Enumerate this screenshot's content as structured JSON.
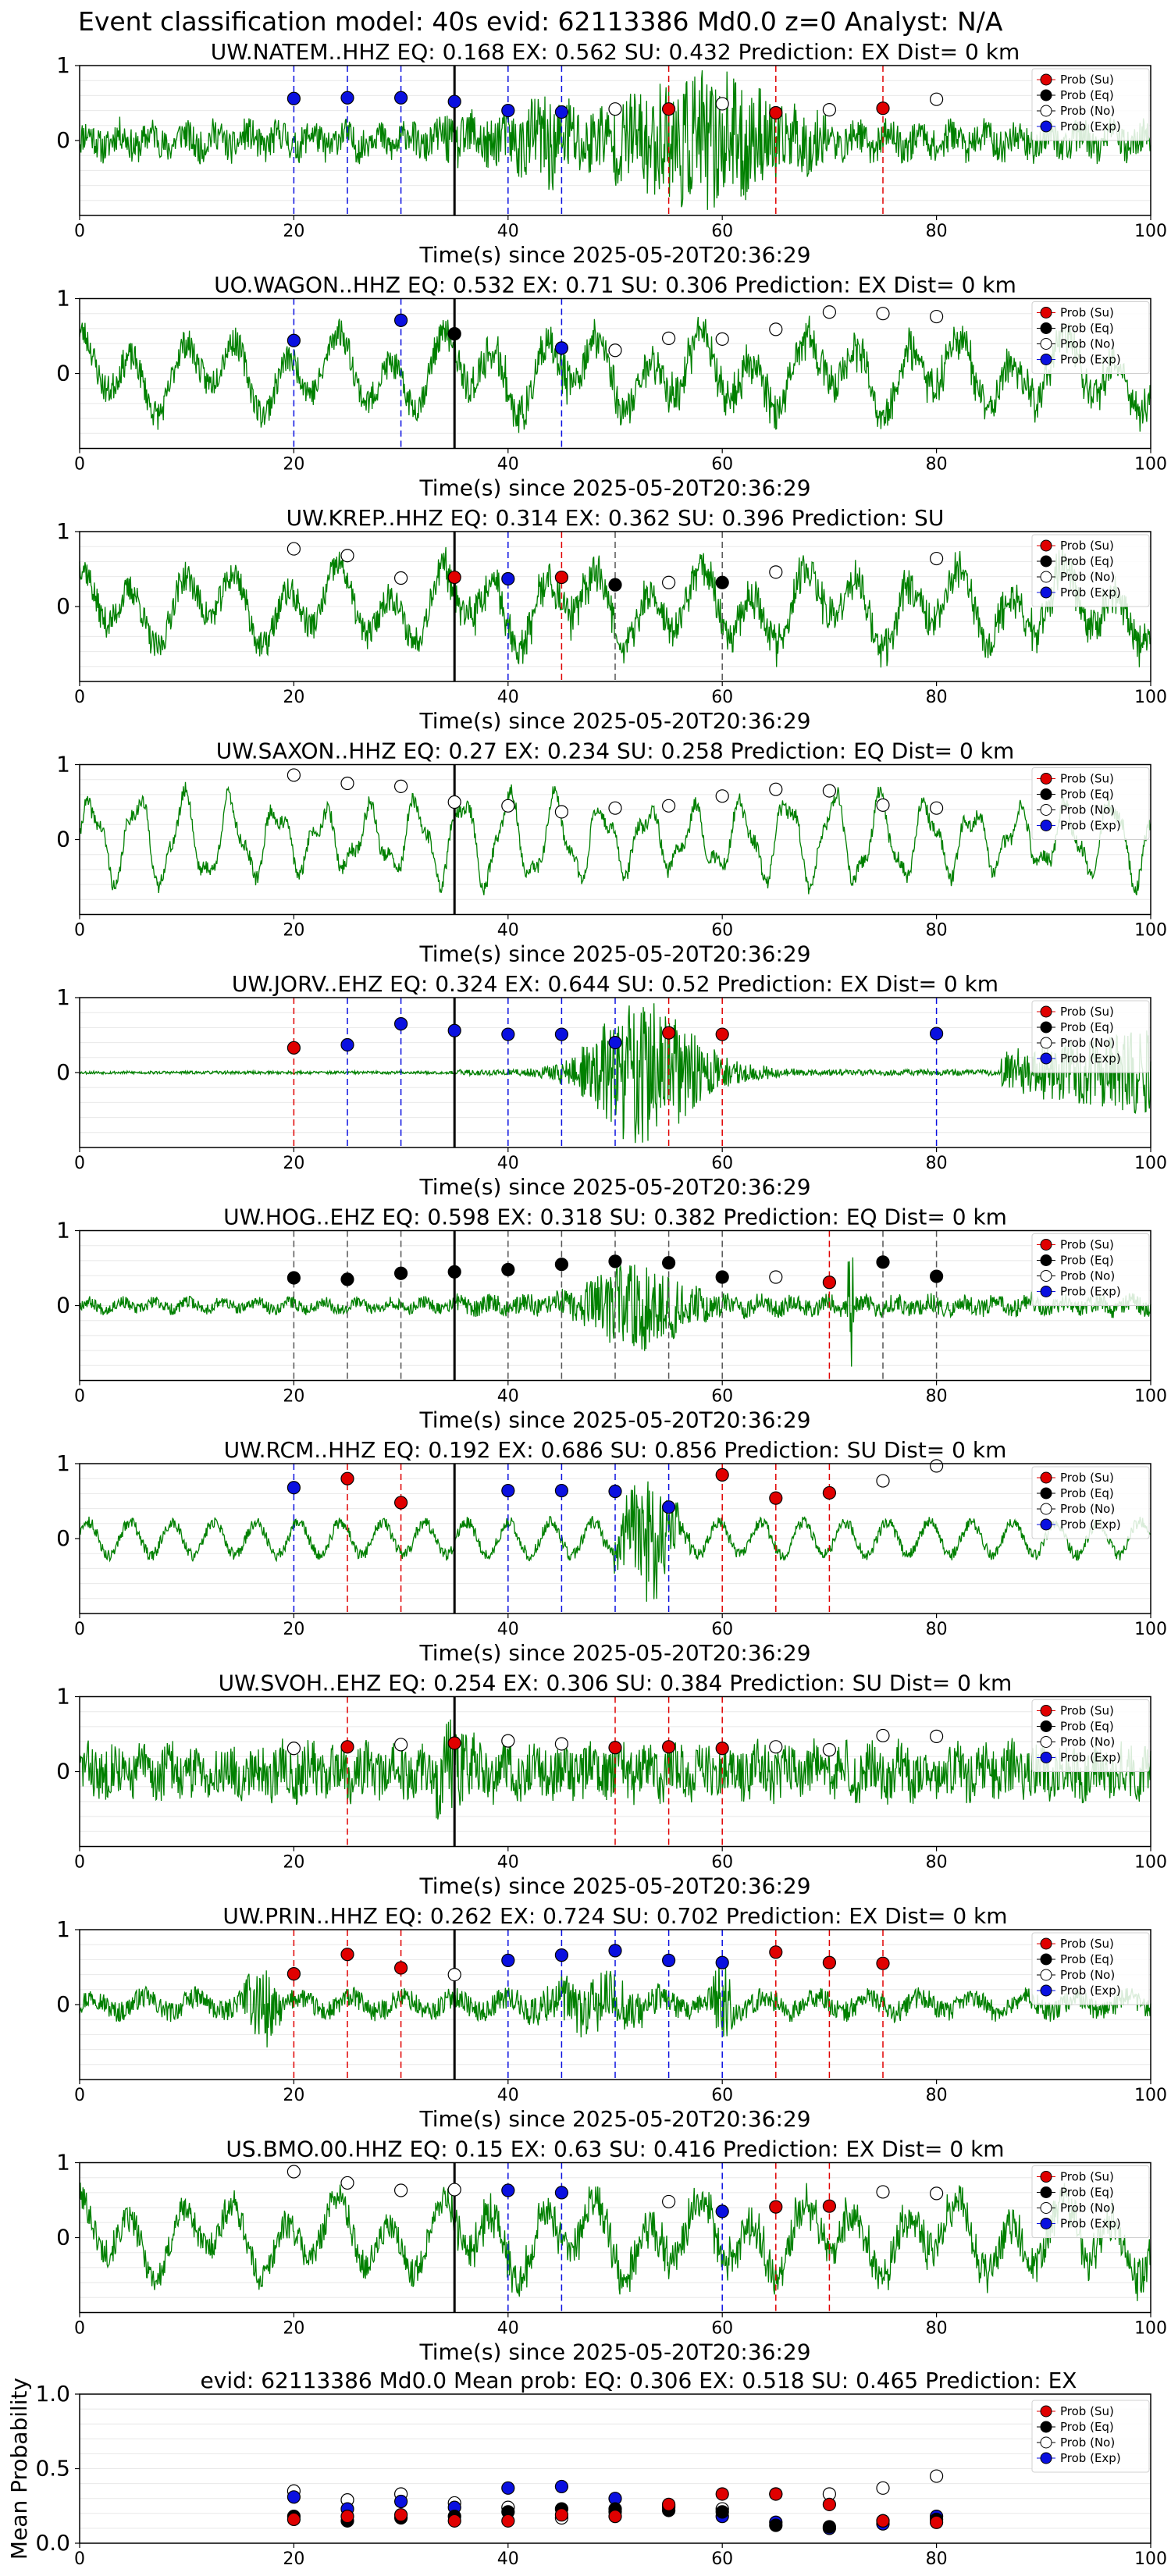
{
  "figure": {
    "suptitle": "Event classification model: 40s evid: 62113386 Md0.0 z=0 Analyst: N/A",
    "legend_labels": [
      "Prob (Su)",
      "Prob (Eq)",
      "Prob (No)",
      "Prob (Exp)"
    ],
    "xlabel": "Time(s) since 2025-05-20T20:36:29",
    "colors": {
      "su": "#e00000",
      "eq": "#000000",
      "no": "#ffffff",
      "exp": "#0a10e0",
      "trace": "#008000",
      "arrival": "#000000"
    }
  },
  "chart_data": [
    {
      "type": "line",
      "title": "UW.NATEM..HHZ   EQ: 0.168  EX: 0.562  SU: 0.432   Prediction: EX    Dist= 0 km",
      "xlim": [
        0,
        100
      ],
      "xticks": [
        0,
        20,
        40,
        60,
        80,
        100
      ],
      "yticks": [
        1,
        0
      ],
      "ylim": [
        -1,
        1
      ],
      "arrival_time": 35,
      "grid": true,
      "legend": "top-right",
      "trace_style": "broadband",
      "trace_seed": 11,
      "windows": [
        {
          "t": 20,
          "class": "exp",
          "p": 0.56
        },
        {
          "t": 25,
          "class": "exp",
          "p": 0.57
        },
        {
          "t": 30,
          "class": "exp",
          "p": 0.57
        },
        {
          "t": 35,
          "class": "exp",
          "p": 0.52
        },
        {
          "t": 40,
          "class": "exp",
          "p": 0.4
        },
        {
          "t": 45,
          "class": "exp",
          "p": 0.38
        },
        {
          "t": 50,
          "class": "no",
          "p": 0.42
        },
        {
          "t": 55,
          "class": "su",
          "p": 0.42
        },
        {
          "t": 60,
          "class": "no",
          "p": 0.49
        },
        {
          "t": 65,
          "class": "su",
          "p": 0.37
        },
        {
          "t": 70,
          "class": "no",
          "p": 0.41
        },
        {
          "t": 75,
          "class": "su",
          "p": 0.43
        },
        {
          "t": 80,
          "class": "no",
          "p": 0.55
        }
      ]
    },
    {
      "type": "line",
      "title": "UO.WAGON..HHZ   EQ: 0.532  EX: 0.71  SU: 0.306   Prediction: EX    Dist= 0 km",
      "xlim": [
        0,
        100
      ],
      "xticks": [
        0,
        20,
        40,
        60,
        80,
        100
      ],
      "yticks": [
        1,
        0
      ],
      "ylim": [
        -1,
        1
      ],
      "arrival_time": 35,
      "grid": true,
      "legend": "top-right",
      "trace_style": "longperiod",
      "trace_seed": 23,
      "windows": [
        {
          "t": 20,
          "class": "exp",
          "p": 0.44
        },
        {
          "t": 30,
          "class": "exp",
          "p": 0.71
        },
        {
          "t": 35,
          "class": "eq",
          "p": 0.53
        },
        {
          "t": 45,
          "class": "exp",
          "p": 0.34
        },
        {
          "t": 50,
          "class": "no",
          "p": 0.31
        },
        {
          "t": 55,
          "class": "no",
          "p": 0.47
        },
        {
          "t": 60,
          "class": "no",
          "p": 0.46
        },
        {
          "t": 65,
          "class": "no",
          "p": 0.59
        },
        {
          "t": 70,
          "class": "no",
          "p": 0.82
        },
        {
          "t": 75,
          "class": "no",
          "p": 0.8
        },
        {
          "t": 80,
          "class": "no",
          "p": 0.76
        }
      ]
    },
    {
      "type": "line",
      "title": "UW.KREP..HHZ   EQ: 0.314  EX: 0.362  SU: 0.396   Prediction: SU",
      "xlim": [
        0,
        100
      ],
      "xticks": [
        0,
        20,
        40,
        60,
        80,
        100
      ],
      "yticks": [
        1,
        0
      ],
      "ylim": [
        -1,
        1
      ],
      "arrival_time": 35,
      "grid": true,
      "legend": "top-right",
      "trace_style": "longperiod",
      "trace_seed": 37,
      "windows": [
        {
          "t": 20,
          "class": "no",
          "p": 0.77
        },
        {
          "t": 25,
          "class": "no",
          "p": 0.68
        },
        {
          "t": 30,
          "class": "no",
          "p": 0.38
        },
        {
          "t": 35,
          "class": "su",
          "p": 0.39
        },
        {
          "t": 40,
          "class": "exp",
          "p": 0.37
        },
        {
          "t": 45,
          "class": "su",
          "p": 0.39
        },
        {
          "t": 50,
          "class": "eq",
          "p": 0.29
        },
        {
          "t": 55,
          "class": "no",
          "p": 0.32
        },
        {
          "t": 60,
          "class": "eq",
          "p": 0.32
        },
        {
          "t": 65,
          "class": "no",
          "p": 0.46
        },
        {
          "t": 80,
          "class": "no",
          "p": 0.64
        }
      ]
    },
    {
      "type": "line",
      "title": "UW.SAXON..HHZ   EQ: 0.27  EX: 0.234  SU: 0.258   Prediction: EQ    Dist= 0 km",
      "xlim": [
        0,
        100
      ],
      "xticks": [
        0,
        20,
        40,
        60,
        80,
        100
      ],
      "yticks": [
        1,
        0
      ],
      "ylim": [
        -1,
        1
      ],
      "arrival_time": 35,
      "grid": true,
      "legend": "top-right",
      "trace_style": "oscillation",
      "trace_seed": 41,
      "windows": [
        {
          "t": 20,
          "class": "no",
          "p": 0.86
        },
        {
          "t": 25,
          "class": "no",
          "p": 0.75
        },
        {
          "t": 30,
          "class": "no",
          "p": 0.71
        },
        {
          "t": 35,
          "class": "no",
          "p": 0.5
        },
        {
          "t": 40,
          "class": "no",
          "p": 0.45
        },
        {
          "t": 45,
          "class": "no",
          "p": 0.37
        },
        {
          "t": 50,
          "class": "no",
          "p": 0.42
        },
        {
          "t": 55,
          "class": "no",
          "p": 0.45
        },
        {
          "t": 60,
          "class": "no",
          "p": 0.58
        },
        {
          "t": 65,
          "class": "no",
          "p": 0.67
        },
        {
          "t": 70,
          "class": "no",
          "p": 0.65
        },
        {
          "t": 75,
          "class": "no",
          "p": 0.46
        },
        {
          "t": 80,
          "class": "no",
          "p": 0.42
        }
      ]
    },
    {
      "type": "line",
      "title": "UW.JORV..EHZ   EQ: 0.324  EX: 0.644  SU: 0.52   Prediction: EX    Dist= 0 km",
      "xlim": [
        0,
        100
      ],
      "xticks": [
        0,
        20,
        40,
        60,
        80,
        100
      ],
      "yticks": [
        1,
        0
      ],
      "ylim": [
        -1,
        1
      ],
      "arrival_time": 35,
      "grid": true,
      "legend": "top-right",
      "trace_style": "quiet_burst",
      "trace_seed": 53,
      "windows": [
        {
          "t": 20,
          "class": "su",
          "p": 0.33
        },
        {
          "t": 25,
          "class": "exp",
          "p": 0.37
        },
        {
          "t": 30,
          "class": "exp",
          "p": 0.65
        },
        {
          "t": 35,
          "class": "exp",
          "p": 0.56
        },
        {
          "t": 40,
          "class": "exp",
          "p": 0.51
        },
        {
          "t": 45,
          "class": "exp",
          "p": 0.51
        },
        {
          "t": 50,
          "class": "exp",
          "p": 0.4
        },
        {
          "t": 55,
          "class": "su",
          "p": 0.53
        },
        {
          "t": 60,
          "class": "su",
          "p": 0.51
        },
        {
          "t": 80,
          "class": "exp",
          "p": 0.52
        }
      ]
    },
    {
      "type": "line",
      "title": "UW.HOG..EHZ   EQ: 0.598  EX: 0.318  SU: 0.382   Prediction: EQ    Dist= 0 km",
      "xlim": [
        0,
        100
      ],
      "xticks": [
        0,
        20,
        40,
        60,
        80,
        100
      ],
      "yticks": [
        1,
        0
      ],
      "ylim": [
        -1,
        1
      ],
      "arrival_time": 35,
      "grid": true,
      "legend": "top-right",
      "trace_style": "small_burst",
      "trace_seed": 67,
      "windows": [
        {
          "t": 20,
          "class": "eq",
          "p": 0.37
        },
        {
          "t": 25,
          "class": "eq",
          "p": 0.35
        },
        {
          "t": 30,
          "class": "eq",
          "p": 0.43
        },
        {
          "t": 35,
          "class": "eq",
          "p": 0.45
        },
        {
          "t": 40,
          "class": "eq",
          "p": 0.48
        },
        {
          "t": 45,
          "class": "eq",
          "p": 0.55
        },
        {
          "t": 50,
          "class": "eq",
          "p": 0.59
        },
        {
          "t": 55,
          "class": "eq",
          "p": 0.57
        },
        {
          "t": 60,
          "class": "eq",
          "p": 0.38
        },
        {
          "t": 65,
          "class": "no",
          "p": 0.38
        },
        {
          "t": 70,
          "class": "su",
          "p": 0.31
        },
        {
          "t": 75,
          "class": "eq",
          "p": 0.58
        },
        {
          "t": 80,
          "class": "eq",
          "p": 0.39
        }
      ]
    },
    {
      "type": "line",
      "title": "UW.RCM..HHZ   EQ: 0.192  EX: 0.686  SU: 0.856   Prediction: SU    Dist= 0 km",
      "xlim": [
        0,
        100
      ],
      "xticks": [
        0,
        20,
        40,
        60,
        80,
        100
      ],
      "yticks": [
        1,
        0
      ],
      "ylim": [
        -1,
        1
      ],
      "arrival_time": 35,
      "grid": true,
      "legend": "top-right",
      "trace_style": "wavy_burst",
      "trace_seed": 71,
      "windows": [
        {
          "t": 20,
          "class": "exp",
          "p": 0.68
        },
        {
          "t": 25,
          "class": "su",
          "p": 0.8
        },
        {
          "t": 30,
          "class": "su",
          "p": 0.48
        },
        {
          "t": 40,
          "class": "exp",
          "p": 0.64
        },
        {
          "t": 45,
          "class": "exp",
          "p": 0.64
        },
        {
          "t": 50,
          "class": "exp",
          "p": 0.63
        },
        {
          "t": 55,
          "class": "exp",
          "p": 0.42
        },
        {
          "t": 60,
          "class": "su",
          "p": 0.85
        },
        {
          "t": 65,
          "class": "su",
          "p": 0.54
        },
        {
          "t": 70,
          "class": "su",
          "p": 0.61
        },
        {
          "t": 75,
          "class": "no",
          "p": 0.77
        },
        {
          "t": 80,
          "class": "no",
          "p": 0.97
        }
      ]
    },
    {
      "type": "line",
      "title": "UW.SVOH..EHZ   EQ: 0.254  EX: 0.306  SU: 0.384   Prediction: SU    Dist= 0 km",
      "xlim": [
        0,
        100
      ],
      "xticks": [
        0,
        20,
        40,
        60,
        80,
        100
      ],
      "yticks": [
        1,
        0
      ],
      "ylim": [
        -1,
        1
      ],
      "arrival_time": 35,
      "grid": true,
      "legend": "top-right",
      "trace_style": "noisy",
      "trace_seed": 83,
      "windows": [
        {
          "t": 20,
          "class": "no",
          "p": 0.31
        },
        {
          "t": 25,
          "class": "su",
          "p": 0.33
        },
        {
          "t": 30,
          "class": "no",
          "p": 0.36
        },
        {
          "t": 35,
          "class": "su",
          "p": 0.38
        },
        {
          "t": 40,
          "class": "no",
          "p": 0.41
        },
        {
          "t": 45,
          "class": "no",
          "p": 0.37
        },
        {
          "t": 50,
          "class": "su",
          "p": 0.32
        },
        {
          "t": 55,
          "class": "su",
          "p": 0.33
        },
        {
          "t": 60,
          "class": "su",
          "p": 0.31
        },
        {
          "t": 65,
          "class": "no",
          "p": 0.33
        },
        {
          "t": 70,
          "class": "no",
          "p": 0.29
        },
        {
          "t": 75,
          "class": "no",
          "p": 0.48
        },
        {
          "t": 80,
          "class": "no",
          "p": 0.47
        }
      ]
    },
    {
      "type": "line",
      "title": "UW.PRIN..HHZ   EQ: 0.262  EX: 0.724  SU: 0.702   Prediction: EX    Dist= 0 km",
      "xlim": [
        0,
        100
      ],
      "xticks": [
        0,
        20,
        40,
        60,
        80,
        100
      ],
      "yticks": [
        1,
        0
      ],
      "ylim": [
        -1,
        1
      ],
      "arrival_time": 35,
      "grid": true,
      "legend": "top-right",
      "trace_style": "bursty",
      "trace_seed": 97,
      "windows": [
        {
          "t": 20,
          "class": "su",
          "p": 0.41
        },
        {
          "t": 25,
          "class": "su",
          "p": 0.67
        },
        {
          "t": 30,
          "class": "su",
          "p": 0.49
        },
        {
          "t": 35,
          "class": "no",
          "p": 0.4
        },
        {
          "t": 40,
          "class": "exp",
          "p": 0.59
        },
        {
          "t": 45,
          "class": "exp",
          "p": 0.66
        },
        {
          "t": 50,
          "class": "exp",
          "p": 0.72
        },
        {
          "t": 55,
          "class": "exp",
          "p": 0.59
        },
        {
          "t": 60,
          "class": "exp",
          "p": 0.56
        },
        {
          "t": 65,
          "class": "su",
          "p": 0.7
        },
        {
          "t": 70,
          "class": "su",
          "p": 0.56
        },
        {
          "t": 75,
          "class": "su",
          "p": 0.55
        }
      ]
    },
    {
      "type": "line",
      "title": "US.BMO.00.HHZ   EQ: 0.15  EX: 0.63  SU: 0.416   Prediction: EX    Dist= 0 km",
      "xlim": [
        0,
        100
      ],
      "xticks": [
        0,
        20,
        40,
        60,
        80,
        100
      ],
      "yticks": [
        1,
        0
      ],
      "ylim": [
        -1,
        1
      ],
      "arrival_time": 35,
      "grid": true,
      "legend": "top-right",
      "trace_style": "longperiod",
      "trace_seed": 101,
      "windows": [
        {
          "t": 20,
          "class": "no",
          "p": 0.88
        },
        {
          "t": 25,
          "class": "no",
          "p": 0.73
        },
        {
          "t": 30,
          "class": "no",
          "p": 0.63
        },
        {
          "t": 35,
          "class": "no",
          "p": 0.64
        },
        {
          "t": 40,
          "class": "exp",
          "p": 0.63
        },
        {
          "t": 45,
          "class": "exp",
          "p": 0.6
        },
        {
          "t": 55,
          "class": "no",
          "p": 0.48
        },
        {
          "t": 60,
          "class": "exp",
          "p": 0.35
        },
        {
          "t": 65,
          "class": "su",
          "p": 0.41
        },
        {
          "t": 70,
          "class": "su",
          "p": 0.42
        },
        {
          "t": 75,
          "class": "no",
          "p": 0.61
        },
        {
          "t": 80,
          "class": "no",
          "p": 0.59
        }
      ]
    },
    {
      "type": "scatter",
      "title": "evid: 62113386  Md0.0   Mean prob:   EQ: 0.306  EX: 0.518  SU: 0.465   Prediction: EX",
      "ylabel": "Mean Probability",
      "xlim": [
        0,
        100
      ],
      "ylim": [
        0,
        1.0
      ],
      "xticks": [
        0,
        20,
        40,
        60,
        80,
        100
      ],
      "yticks": [
        "1.0",
        "0.5",
        "0.0"
      ],
      "grid": true,
      "legend": "top-right",
      "series": [
        {
          "name": "Prob (Su)",
          "x": [
            20,
            25,
            30,
            35,
            40,
            45,
            50,
            55,
            60,
            65,
            70,
            75,
            80
          ],
          "values": [
            0.16,
            0.18,
            0.19,
            0.15,
            0.15,
            0.19,
            0.18,
            0.26,
            0.33,
            0.33,
            0.26,
            0.15,
            0.14
          ]
        },
        {
          "name": "Prob (Eq)",
          "x": [
            20,
            25,
            30,
            35,
            40,
            45,
            50,
            55,
            60,
            65,
            70,
            75,
            80
          ],
          "values": [
            0.18,
            0.15,
            0.17,
            0.18,
            0.21,
            0.23,
            0.23,
            0.22,
            0.21,
            0.12,
            0.11,
            0.15,
            0.16
          ]
        },
        {
          "name": "Prob (No)",
          "x": [
            20,
            25,
            30,
            35,
            40,
            45,
            50,
            55,
            60,
            65,
            70,
            75,
            80
          ],
          "values": [
            0.35,
            0.29,
            0.33,
            0.27,
            0.24,
            0.17,
            0.21,
            0.24,
            0.23,
            0.33,
            0.33,
            0.37,
            0.45
          ]
        },
        {
          "name": "Prob (Exp)",
          "x": [
            20,
            25,
            30,
            35,
            40,
            45,
            50,
            55,
            60,
            65,
            70,
            75,
            80
          ],
          "values": [
            0.31,
            0.23,
            0.28,
            0.24,
            0.37,
            0.38,
            0.3,
            0.25,
            0.18,
            0.14,
            0.1,
            0.13,
            0.18
          ]
        }
      ]
    }
  ]
}
